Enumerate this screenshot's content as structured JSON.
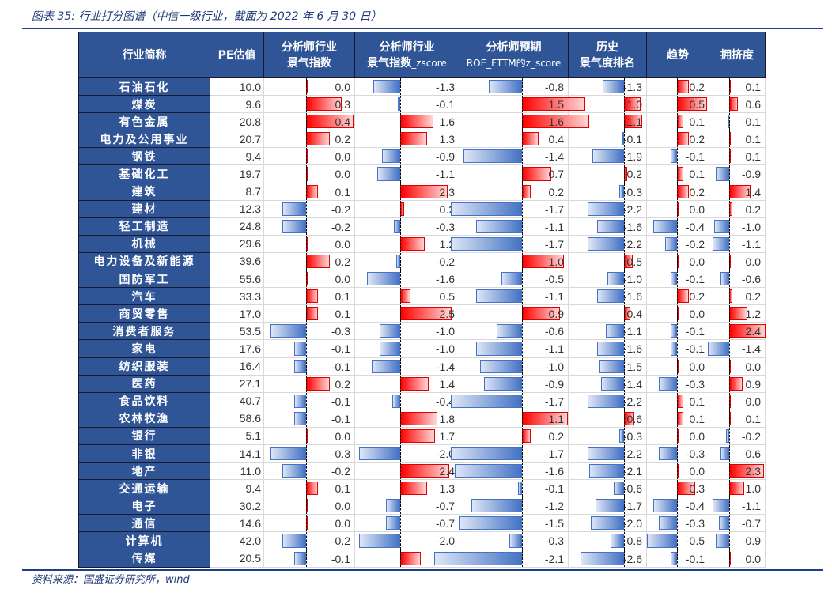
{
  "title": "图表 35:  行业打分图谱（中信一级行业，截面为 2022 年 6 月 30 日）",
  "source": "资料来源：国盛证券研究所，wind",
  "headers": {
    "name": "行业简称",
    "pe": "PE估值",
    "c1_l1": "分析师行业",
    "c1_l2": "景气指数",
    "c2_l1": "分析师行业",
    "c2_l2": "景气指数",
    "c2_sub": "_zscore",
    "c3_l1": "分析师预期",
    "c3_l2": "ROE_FTTM的z_score",
    "c4_l1": "历史",
    "c4_l2": "景气度排名",
    "c5": "趋势",
    "c6": "拥挤度"
  },
  "colors": {
    "header_bg": "#2f5597",
    "positive_bar": "#ff0000",
    "negative_bar": "#4472c4"
  },
  "chart_data": {
    "type": "table",
    "title": "行业打分图谱（中信一级行业，截面为 2022 年 6 月 30 日）",
    "columns": [
      "行业简称",
      "PE估值",
      "分析师行业景气指数",
      "分析师行业景气指数_zscore",
      "分析师预期ROE_FTTM的z_score",
      "历史景气度排名",
      "趋势",
      "拥挤度"
    ],
    "rows": [
      [
        "石油石化",
        10.0,
        0.0,
        -1.3,
        -0.8,
        -1.3,
        0.2,
        0.1
      ],
      [
        "煤炭",
        9.6,
        0.3,
        -0.1,
        1.5,
        1.0,
        0.5,
        0.6
      ],
      [
        "有色金属",
        20.8,
        0.4,
        1.6,
        1.6,
        1.1,
        0.1,
        -0.1
      ],
      [
        "电力及公用事业",
        20.7,
        0.2,
        1.3,
        0.4,
        -0.1,
        0.2,
        0.1
      ],
      [
        "钢铁",
        9.4,
        0.0,
        -0.9,
        -1.4,
        -1.9,
        -0.1,
        0.1
      ],
      [
        "基础化工",
        19.7,
        0.0,
        -1.1,
        0.7,
        0.2,
        0.1,
        -0.9
      ],
      [
        "建筑",
        8.7,
        0.1,
        2.3,
        0.2,
        -0.3,
        0.2,
        1.4
      ],
      [
        "建材",
        12.3,
        -0.2,
        0.2,
        -1.7,
        -2.2,
        0.0,
        0.2
      ],
      [
        "轻工制造",
        24.8,
        -0.2,
        -0.3,
        -1.1,
        -1.6,
        -0.4,
        -1.0
      ],
      [
        "机械",
        29.6,
        0.0,
        1.2,
        -1.7,
        -2.2,
        -0.2,
        -1.1
      ],
      [
        "电力设备及新能源",
        39.6,
        0.2,
        -0.2,
        1.0,
        0.5,
        0.0,
        0.0
      ],
      [
        "国防军工",
        55.6,
        0.0,
        -1.6,
        -0.5,
        -1.0,
        -0.1,
        -0.6
      ],
      [
        "汽车",
        33.3,
        0.1,
        0.5,
        -1.1,
        -1.6,
        0.2,
        0.2
      ],
      [
        "商贸零售",
        17.0,
        0.1,
        2.5,
        0.9,
        0.4,
        0.0,
        1.2
      ],
      [
        "消费者服务",
        53.5,
        -0.3,
        -1.0,
        -0.6,
        -1.1,
        -0.1,
        2.4
      ],
      [
        "家电",
        17.6,
        -0.1,
        -1.0,
        -1.1,
        -1.6,
        -0.1,
        -1.4
      ],
      [
        "纺织服装",
        16.4,
        -0.1,
        -1.4,
        -1.0,
        -1.5,
        0.0,
        0.0
      ],
      [
        "医药",
        27.1,
        0.2,
        1.4,
        -0.9,
        -1.4,
        -0.3,
        0.9
      ],
      [
        "食品饮料",
        40.7,
        -0.1,
        -0.4,
        -1.7,
        -2.2,
        0.1,
        0.0
      ],
      [
        "农林牧渔",
        58.6,
        -0.1,
        1.8,
        1.1,
        0.6,
        0.1,
        0.1
      ],
      [
        "银行",
        5.1,
        0.0,
        1.7,
        0.2,
        -0.3,
        0.0,
        -0.2
      ],
      [
        "非银",
        14.1,
        -0.3,
        -2.0,
        -1.7,
        -2.2,
        -0.3,
        -0.6
      ],
      [
        "地产",
        11.0,
        -0.2,
        2.4,
        -1.6,
        -2.1,
        0.0,
        2.3
      ],
      [
        "交通运输",
        9.4,
        0.1,
        1.3,
        -0.1,
        -0.6,
        0.3,
        1.0
      ],
      [
        "电子",
        30.2,
        0.0,
        -0.7,
        -1.2,
        -1.7,
        -0.4,
        -1.1
      ],
      [
        "通信",
        14.6,
        0.0,
        -0.7,
        -1.5,
        -2.0,
        -0.3,
        -0.7
      ],
      [
        "计算机",
        42.0,
        -0.2,
        -2.0,
        -0.3,
        -0.8,
        -0.5,
        -0.9
      ],
      [
        "传媒",
        20.5,
        -0.1,
        1.0,
        -2.1,
        -2.6,
        -0.1,
        0.0
      ]
    ]
  }
}
